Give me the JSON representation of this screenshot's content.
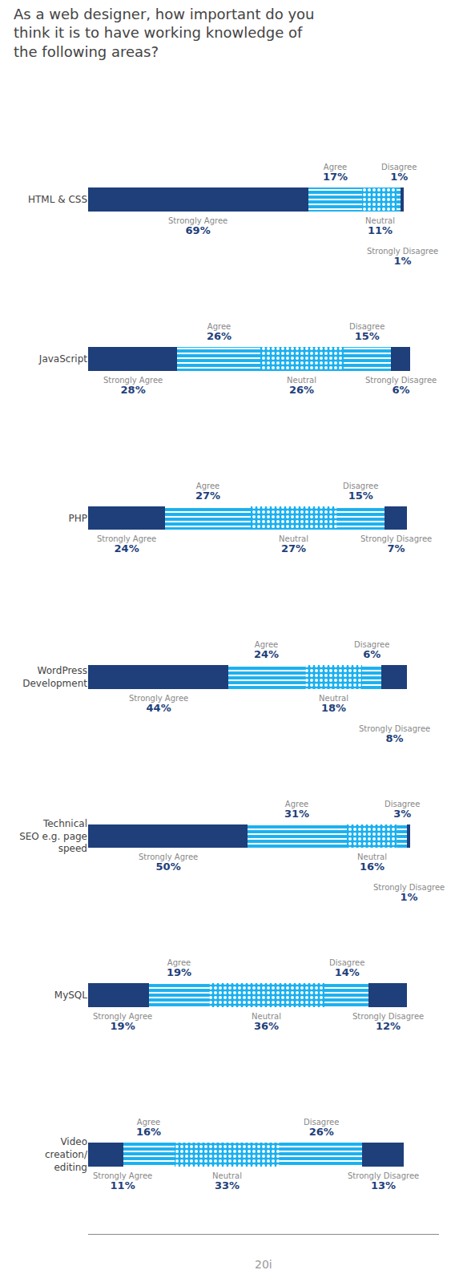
{
  "chart_data": {
    "type": "bar",
    "title": "As a web designer, how important do you\nthink it is to have working knowledge of\nthe following areas?",
    "orientation": "horizontal",
    "stacked": true,
    "data_labels": true,
    "tick_labels": "y",
    "grid": false,
    "categories": [
      "HTML & CSS",
      "JavaScript",
      "PHP",
      "WordPress\nDevelopment",
      "Technical\nSEO e.g. page\nspeed",
      "MySQL",
      "Video\ncreation/\nediting"
    ],
    "series": [
      {
        "name": "Strongly Agree",
        "color": "#1e3f7a",
        "marker": "solid",
        "values": [
          69,
          28,
          24,
          44,
          50,
          19,
          11
        ],
        "value_labels": [
          "69%",
          "28%",
          "24%",
          "44%",
          "50%",
          "19%",
          "11%"
        ]
      },
      {
        "name": "Agree",
        "color": "#1ab0f0",
        "marker": "lines",
        "values": [
          17,
          26,
          27,
          24,
          31,
          19,
          16
        ],
        "value_labels": [
          "17%",
          "26%",
          "27%",
          "24%",
          "31%",
          "19%",
          "16%"
        ]
      },
      {
        "name": "Neutral",
        "color": "#1ab0f0",
        "marker": "dots",
        "values": [
          11,
          26,
          27,
          18,
          16,
          36,
          33
        ],
        "value_labels": [
          "11%",
          "26%",
          "27%",
          "18%",
          "16%",
          "36%",
          "33%"
        ]
      },
      {
        "name": "Disagree",
        "color": "#1ab0f0",
        "marker": "lines",
        "values": [
          1,
          15,
          15,
          6,
          3,
          14,
          26
        ],
        "value_labels": [
          "1%",
          "15%",
          "15%",
          "6%",
          "3%",
          "14%",
          "26%"
        ]
      },
      {
        "name": "Strongly Disagree",
        "color": "#1e3f7a",
        "marker": "solid",
        "values": [
          1,
          6,
          7,
          8,
          1,
          12,
          13
        ],
        "value_labels": [
          "1%",
          "6%",
          "7%",
          "8%",
          "1%",
          "12%",
          "13%"
        ]
      }
    ],
    "xlim": [
      0,
      110
    ],
    "annotations": [
      "20i"
    ]
  }
}
